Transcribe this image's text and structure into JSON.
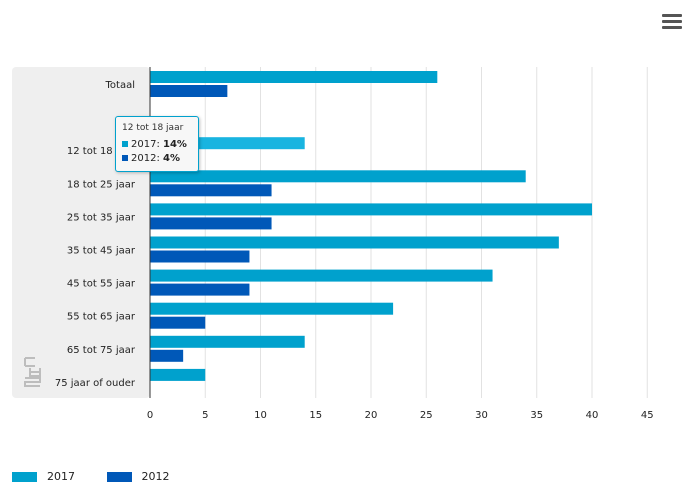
{
  "chart_data": {
    "type": "bar",
    "orientation": "horizontal",
    "categories": [
      "Totaal",
      "",
      "12 tot 18 jaar",
      "18 tot 25 jaar",
      "25 tot 35 jaar",
      "35 tot 45 jaar",
      "45 tot 55 jaar",
      "55 tot 65 jaar",
      "65 tot 75 jaar",
      "75 jaar of ouder"
    ],
    "series": [
      {
        "name": "2017",
        "color": "#00a1cd",
        "values": [
          26,
          null,
          14,
          34,
          40,
          37,
          31,
          22,
          14,
          5
        ]
      },
      {
        "name": "2012",
        "color": "#0058b8",
        "values": [
          7,
          null,
          4,
          11,
          11,
          9,
          9,
          5,
          3,
          null
        ]
      }
    ],
    "xlim": [
      0,
      45
    ],
    "xticks": [
      0,
      5,
      10,
      15,
      20,
      25,
      30,
      35,
      40,
      45
    ],
    "grid": true,
    "legend_position": "bottom-left",
    "hover_category": 2,
    "hover_color": "#19b4e0"
  },
  "tooltip": {
    "title": "12 tot 18 jaar",
    "row1_label": "2017",
    "row1_value": "14%",
    "row2_label": "2012",
    "row2_value": "4%"
  },
  "legend": {
    "item1": "2017",
    "item2": "2012"
  },
  "icons": {
    "menu": "hamburger-menu-icon",
    "logo": "cbs-logo"
  }
}
